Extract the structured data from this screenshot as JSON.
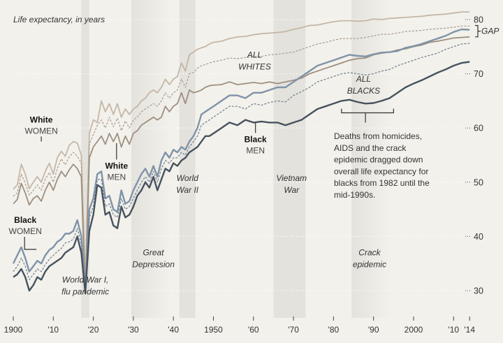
{
  "chart_data": {
    "type": "line",
    "title": "Life expectancy, in years",
    "xlabel": "",
    "ylabel": "Life expectancy, in years",
    "xlim": [
      1900,
      2014
    ],
    "ylim": [
      28,
      82
    ],
    "grid": true,
    "y_ticks": [
      {
        "value": 80,
        "label": "80"
      },
      {
        "value": 70,
        "label": "70"
      },
      {
        "value": 60,
        "label": "60"
      },
      {
        "value": 50,
        "label": "50"
      },
      {
        "value": 40,
        "label": "40"
      },
      {
        "value": 30,
        "label": "30"
      }
    ],
    "x_ticks": [
      {
        "value": 1900,
        "label": "1900"
      },
      {
        "value": 1910,
        "label": "'10"
      },
      {
        "value": 1920,
        "label": "'20"
      },
      {
        "value": 1930,
        "label": "'30"
      },
      {
        "value": 1940,
        "label": "'40"
      },
      {
        "value": 1950,
        "label": "1950"
      },
      {
        "value": 1960,
        "label": "'60"
      },
      {
        "value": 1970,
        "label": "'70"
      },
      {
        "value": 1980,
        "label": "'80"
      },
      {
        "value": 1990,
        "label": "'90"
      },
      {
        "value": 2000,
        "label": "2000"
      },
      {
        "value": 2010,
        "label": "'10"
      },
      {
        "value": 2014,
        "label": "'14"
      }
    ],
    "bands": [
      {
        "name": "World War I, flu pandemic",
        "label_lines": [
          "World War I,",
          "flu pandemic"
        ],
        "start": 1917,
        "end": 1919,
        "label_year": 1918,
        "label_value": 31.5
      },
      {
        "name": "Great Depression",
        "label_lines": [
          "Great",
          "Depression"
        ],
        "start": 1929.5,
        "end": 1939.5,
        "label_year": 1935,
        "label_value": 36.5,
        "gradient": true
      },
      {
        "name": "World War II",
        "label_lines": [
          "World",
          "War II"
        ],
        "start": 1941.5,
        "end": 1945.5,
        "label_year": 1943.5,
        "label_value": 50.2
      },
      {
        "name": "Vietnam War",
        "label_lines": [
          "Vietnam",
          "War"
        ],
        "start": 1965,
        "end": 1973,
        "label_year": 1969.5,
        "label_value": 50.2
      },
      {
        "name": "Crack epidemic",
        "label_lines": [
          "Crack",
          "epidemic"
        ],
        "start": 1984.5,
        "end": 1994.5,
        "label_year": 1989,
        "label_value": 36.5,
        "gradient": true
      }
    ],
    "x": [
      1900,
      1901,
      1902,
      1903,
      1904,
      1905,
      1906,
      1907,
      1908,
      1909,
      1910,
      1911,
      1912,
      1913,
      1914,
      1915,
      1916,
      1917,
      1918,
      1919,
      1920,
      1921,
      1922,
      1923,
      1924,
      1925,
      1926,
      1927,
      1928,
      1929,
      1930,
      1931,
      1932,
      1933,
      1934,
      1935,
      1936,
      1937,
      1938,
      1939,
      1940,
      1941,
      1942,
      1943,
      1944,
      1945,
      1946,
      1947,
      1948,
      1949,
      1950,
      1952,
      1954,
      1956,
      1958,
      1960,
      1962,
      1964,
      1966,
      1968,
      1970,
      1972,
      1974,
      1976,
      1978,
      1980,
      1982,
      1984,
      1986,
      1988,
      1990,
      1992,
      1994,
      1996,
      1998,
      2000,
      2002,
      2004,
      2006,
      2008,
      2010,
      2012,
      2014
    ],
    "series": [
      {
        "name": "White women",
        "style": "solid",
        "color": "#c4b7a6",
        "values": [
          48.7,
          49.5,
          53.3,
          51.5,
          48.8,
          50.0,
          51.0,
          50.0,
          52.0,
          53.5,
          51.5,
          54.5,
          55.7,
          54.8,
          56.8,
          57.5,
          57.2,
          55.0,
          31.5,
          59.0,
          61.5,
          61.0,
          65.0,
          63.0,
          64.5,
          62.5,
          64.5,
          62.0,
          63.5,
          62.5,
          63.5,
          64.0,
          65.0,
          65.5,
          66.5,
          67.0,
          66.5,
          67.5,
          69.0,
          68.0,
          69.0,
          69.5,
          72.0,
          70.5,
          73.5,
          74.0,
          74.5,
          74.8,
          75.0,
          75.5,
          75.8,
          76.0,
          76.5,
          76.8,
          76.9,
          77.2,
          77.4,
          77.5,
          77.6,
          77.8,
          78.2,
          78.5,
          78.9,
          79.0,
          79.3,
          79.6,
          79.8,
          79.8,
          79.7,
          79.8,
          80.1,
          80.0,
          80.2,
          80.3,
          80.4,
          80.5,
          80.6,
          80.8,
          80.9,
          81.0,
          81.2,
          81.4,
          81.4
        ]
      },
      {
        "name": "All whites",
        "style": "dashed",
        "color": "#a89b8d",
        "values": [
          47.4,
          48.0,
          51.5,
          49.8,
          47.6,
          48.5,
          49.5,
          48.5,
          50.5,
          51.8,
          50.0,
          52.5,
          54.3,
          53.2,
          54.7,
          55.5,
          54.8,
          53.5,
          30.0,
          57.0,
          58.8,
          60.5,
          61.5,
          60.0,
          62.0,
          60.2,
          61.8,
          59.5,
          61.3,
          60.0,
          61.5,
          62.0,
          63.0,
          63.5,
          64.0,
          64.5,
          64.0,
          65.0,
          66.5,
          65.5,
          66.5,
          67.0,
          69.0,
          67.5,
          70.0,
          70.2,
          71.0,
          71.5,
          71.7,
          72.0,
          72.2,
          72.5,
          72.9,
          72.8,
          73.0,
          73.2,
          73.2,
          73.5,
          73.6,
          73.8,
          74.0,
          74.5,
          75.0,
          75.5,
          75.8,
          76.2,
          76.5,
          76.5,
          76.5,
          76.7,
          77.0,
          77.3,
          77.3,
          77.5,
          77.8,
          77.9,
          78.0,
          78.2,
          78.3,
          78.4,
          78.6,
          78.8,
          78.8
        ]
      },
      {
        "name": "White men",
        "style": "solid",
        "color": "#9e8f80",
        "values": [
          46.0,
          46.8,
          49.8,
          48.0,
          45.8,
          47.0,
          47.5,
          46.5,
          48.5,
          50.0,
          48.5,
          50.5,
          52.0,
          51.0,
          52.3,
          53.3,
          52.5,
          51.0,
          29.5,
          54.5,
          56.5,
          57.5,
          58.5,
          57.0,
          59.0,
          57.5,
          59.0,
          56.5,
          58.5,
          57.0,
          59.0,
          59.5,
          60.5,
          61.0,
          61.5,
          62.0,
          61.5,
          62.0,
          64.0,
          63.0,
          64.0,
          64.5,
          66.5,
          64.5,
          67.0,
          66.5,
          66.7,
          67.0,
          67.5,
          67.8,
          67.9,
          68.0,
          68.5,
          68.0,
          68.2,
          68.4,
          68.2,
          68.5,
          68.2,
          68.5,
          68.8,
          69.2,
          70.0,
          70.5,
          71.0,
          71.5,
          72.0,
          72.5,
          72.8,
          72.9,
          73.5,
          73.8,
          74.0,
          74.4,
          74.6,
          75.0,
          75.3,
          75.8,
          76.0,
          76.3,
          76.6,
          76.7,
          76.8
        ]
      },
      {
        "name": "Black women",
        "style": "solid",
        "color": "#7f93a8",
        "values": [
          35.0,
          36.5,
          38.0,
          36.0,
          33.5,
          34.5,
          35.5,
          35.0,
          36.5,
          37.5,
          38.0,
          39.0,
          39.5,
          40.5,
          40.5,
          41.0,
          43.0,
          40.0,
          30.0,
          45.0,
          47.0,
          51.5,
          52.0,
          47.0,
          47.5,
          45.0,
          44.5,
          48.5,
          46.0,
          46.5,
          48.5,
          50.0,
          51.5,
          52.5,
          51.0,
          53.0,
          51.0,
          54.0,
          55.5,
          54.5,
          56.0,
          55.5,
          56.5,
          56.0,
          57.5,
          58.5,
          60.0,
          62.5,
          63.0,
          63.5,
          64.0,
          65.0,
          66.0,
          66.0,
          65.5,
          66.5,
          66.5,
          67.0,
          67.5,
          67.5,
          68.5,
          69.5,
          70.5,
          71.5,
          72.0,
          72.5,
          73.0,
          73.5,
          73.3,
          73.2,
          73.6,
          73.9,
          74.0,
          74.2,
          74.8,
          75.1,
          75.5,
          76.0,
          76.5,
          77.0,
          77.7,
          78.2,
          78.1
        ]
      },
      {
        "name": "All blacks",
        "style": "dashed",
        "color": "#6b7d90",
        "values": [
          33.5,
          34.5,
          36.0,
          34.5,
          32.0,
          33.0,
          34.0,
          33.5,
          34.8,
          35.8,
          36.5,
          37.2,
          37.8,
          38.8,
          39.0,
          39.5,
          41.5,
          38.5,
          29.8,
          43.5,
          45.5,
          50.5,
          50.5,
          45.5,
          46.0,
          44.0,
          43.5,
          47.0,
          45.0,
          45.5,
          47.0,
          48.5,
          50.0,
          51.0,
          50.0,
          52.0,
          50.0,
          52.5,
          54.0,
          53.5,
          54.5,
          54.5,
          55.5,
          55.0,
          56.5,
          57.5,
          58.5,
          60.5,
          61.0,
          61.5,
          62.0,
          63.0,
          64.0,
          64.0,
          63.5,
          64.5,
          64.2,
          64.7,
          65.0,
          64.8,
          66.0,
          66.7,
          67.5,
          68.5,
          69.0,
          69.5,
          70.0,
          70.2,
          70.0,
          69.8,
          70.0,
          70.5,
          70.8,
          71.5,
          72.0,
          72.5,
          73.0,
          73.4,
          73.8,
          74.5,
          75.0,
          75.5,
          75.6
        ]
      },
      {
        "name": "Black men",
        "style": "solid",
        "color": "#46525f",
        "values": [
          32.5,
          33.0,
          34.0,
          32.5,
          30.0,
          31.0,
          32.5,
          32.0,
          33.5,
          34.5,
          35.0,
          35.5,
          36.0,
          37.0,
          37.5,
          38.0,
          40.0,
          37.0,
          29.5,
          41.0,
          44.0,
          49.5,
          49.0,
          44.0,
          44.5,
          42.0,
          41.5,
          45.5,
          43.5,
          44.0,
          45.5,
          47.5,
          48.5,
          50.0,
          49.0,
          51.0,
          48.5,
          50.5,
          52.5,
          52.0,
          53.5,
          53.0,
          54.0,
          54.5,
          55.5,
          56.0,
          56.5,
          57.5,
          58.5,
          58.5,
          59.0,
          60.0,
          61.0,
          60.5,
          61.5,
          61.0,
          61.2,
          61.0,
          61.0,
          60.5,
          61.0,
          61.5,
          62.5,
          63.5,
          64.0,
          64.5,
          65.0,
          65.2,
          64.8,
          64.5,
          64.6,
          65.0,
          65.5,
          66.5,
          67.5,
          68.2,
          68.8,
          69.5,
          70.2,
          70.8,
          71.5,
          72.0,
          72.2
        ]
      }
    ],
    "series_labels": [
      {
        "series": "White women",
        "bold": "White",
        "sub": "WOMEN",
        "label_year": 1907,
        "label_value": 61.0,
        "leader_to_year": 1907,
        "leader_to_value": 57.5
      },
      {
        "series": "White men",
        "bold": "White",
        "sub": "MEN",
        "label_year": 1925.8,
        "label_value": 52.5,
        "leader_to_year": 1925.8,
        "leader_to_value": 57.2
      },
      {
        "series": "Black men",
        "bold": "Black",
        "sub": "MEN",
        "label_year": 1960.5,
        "label_value": 57.4,
        "leader_to_year": 1960.5,
        "leader_to_value": 61.0
      },
      {
        "series": "Black women",
        "bold": "Black",
        "sub": "WOMEN",
        "label_year": 1903,
        "label_value": 42.5
      }
    ],
    "group_labels": [
      {
        "text_lines": [
          "ALL",
          "WHITES"
        ],
        "year": 1960.3,
        "value": 73.0
      },
      {
        "text_lines": [
          "ALL",
          "BLACKS"
        ],
        "year": 1987.5,
        "value": 68.5
      }
    ],
    "gap_label": "GAP",
    "gap_range": [
      76.8,
      78.9
    ],
    "annotation": {
      "text_lines": [
        "Deaths from homicides,",
        "AIDS and the crack",
        "epidemic dragged down",
        "overall life expectancy for",
        "blacks from 1982 until the",
        "mid-1990s."
      ],
      "bracket_start": 1982,
      "bracket_end": 1995,
      "bracket_value": 62.8
    }
  }
}
